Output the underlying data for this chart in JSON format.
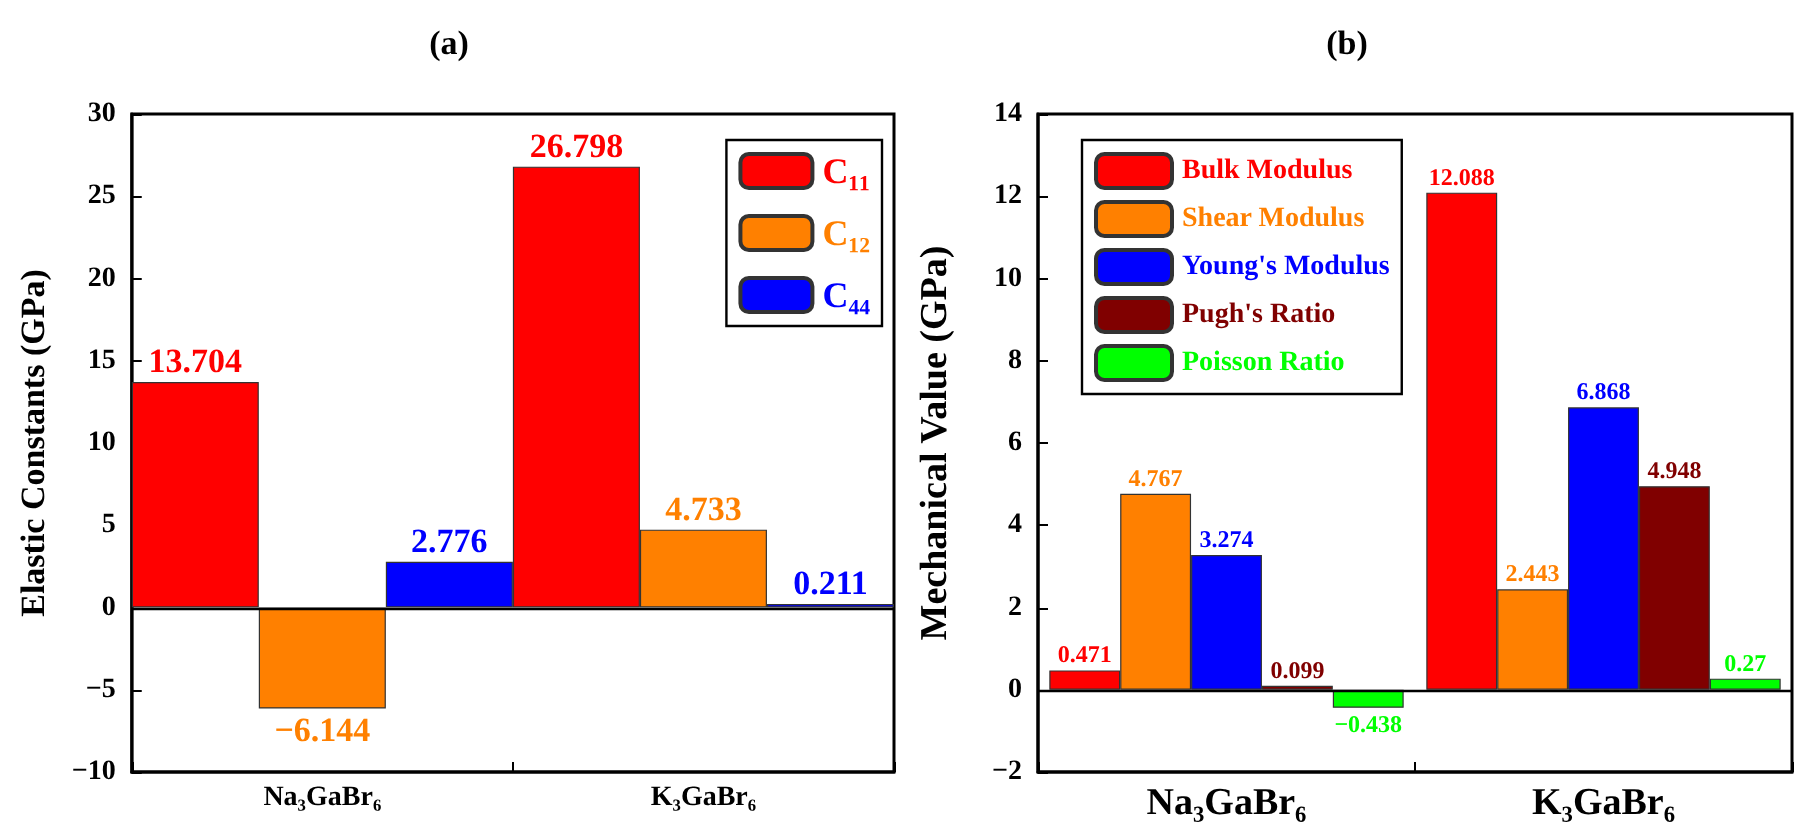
{
  "chart_data": [
    {
      "type": "bar",
      "title": "(a)",
      "ylabel": "Elastic Constants (GPa)",
      "categories": [
        "Na₃GaBr₆",
        "K₃GaBr₆"
      ],
      "series": [
        {
          "name": "C₁₁",
          "color": "#ff0000",
          "values": [
            13.704,
            26.798
          ]
        },
        {
          "name": "C₁₂",
          "color": "#ff8000",
          "values": [
            -6.144,
            4.733
          ]
        },
        {
          "name": "C₄₄",
          "color": "#0000ff",
          "values": [
            2.776,
            0.211
          ]
        }
      ],
      "ylim": [
        -10,
        30
      ],
      "yticks": [
        -10,
        -5,
        0,
        5,
        10,
        15,
        20,
        25,
        30
      ],
      "ref_lines": [
        {
          "axis": "y",
          "value": 0
        }
      ],
      "grid": false,
      "legend": "top right",
      "data_labels": true
    },
    {
      "type": "bar",
      "title": "(b)",
      "ylabel": "Mechanical Value (GPa)",
      "categories": [
        "Na₃GaBr₆",
        "K₃GaBr₆"
      ],
      "series": [
        {
          "name": "Bulk Modulus",
          "color": "#ff0000",
          "values": [
            0.471,
            12.088
          ]
        },
        {
          "name": "Shear Modulus",
          "color": "#ff8000",
          "values": [
            4.767,
            2.443
          ]
        },
        {
          "name": "Young's Modulus",
          "color": "#0000ff",
          "values": [
            3.274,
            6.868
          ]
        },
        {
          "name": "Pugh's Ratio",
          "color": "#800000",
          "values": [
            0.099,
            4.948
          ]
        },
        {
          "name": "Poisson Ratio",
          "color": "#00ff00",
          "values": [
            -0.438,
            0.27
          ]
        }
      ],
      "ylim": [
        -2,
        14
      ],
      "yticks": [
        -2,
        0,
        2,
        4,
        6,
        8,
        10,
        12,
        14
      ],
      "ref_lines": [
        {
          "axis": "y",
          "value": 0
        }
      ],
      "grid": false,
      "legend": "top left",
      "data_labels": true
    }
  ]
}
